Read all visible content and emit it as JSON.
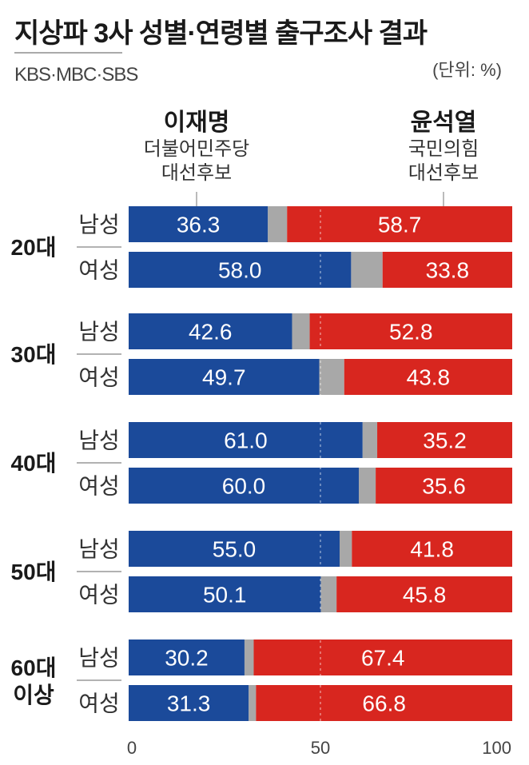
{
  "header": {
    "title": "지상파 3사 성별·연령별 출구조사 결과",
    "source": "KBS·MBC·SBS",
    "unit": "(단위: %)"
  },
  "candidates": [
    {
      "name": "이재명",
      "party": "더불어민주당",
      "role": "대선후보",
      "color": "#1b4a9a"
    },
    {
      "name": "윤석열",
      "party": "국민의힘",
      "role": "대선후보",
      "color": "#d8261f"
    }
  ],
  "chart_data": {
    "type": "bar",
    "stacked": true,
    "orientation": "horizontal",
    "xlim": [
      0,
      100
    ],
    "x_ticks": [
      "0",
      "50",
      "100"
    ],
    "other_color": "#a8a8a8",
    "groups": [
      {
        "label": "20대",
        "rows": [
          {
            "gender": "남성",
            "lee": 36.3,
            "yoon": 58.7
          },
          {
            "gender": "여성",
            "lee": 58.0,
            "yoon": 33.8
          }
        ]
      },
      {
        "label": "30대",
        "rows": [
          {
            "gender": "남성",
            "lee": 42.6,
            "yoon": 52.8
          },
          {
            "gender": "여성",
            "lee": 49.7,
            "yoon": 43.8
          }
        ]
      },
      {
        "label": "40대",
        "rows": [
          {
            "gender": "남성",
            "lee": 61.0,
            "yoon": 35.2
          },
          {
            "gender": "여성",
            "lee": 60.0,
            "yoon": 35.6
          }
        ]
      },
      {
        "label": "50대",
        "rows": [
          {
            "gender": "남성",
            "lee": 55.0,
            "yoon": 41.8
          },
          {
            "gender": "여성",
            "lee": 50.1,
            "yoon": 45.8
          }
        ]
      },
      {
        "label": "60대 이상",
        "rows": [
          {
            "gender": "남성",
            "lee": 30.2,
            "yoon": 67.4
          },
          {
            "gender": "여성",
            "lee": 31.3,
            "yoon": 66.8
          }
        ]
      }
    ]
  }
}
